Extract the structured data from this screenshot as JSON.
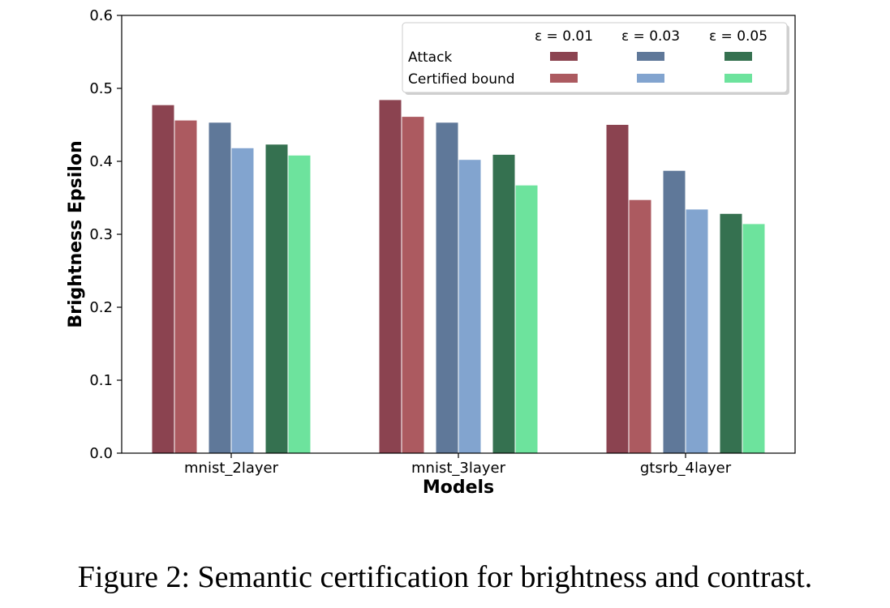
{
  "caption": "Figure 2: Semantic certification for brightness and contrast.",
  "chart_data": {
    "type": "bar",
    "title": "",
    "xlabel": "Models",
    "ylabel": "Brightness Epsilon",
    "ylim": [
      0,
      0.6
    ],
    "yticks": [
      "0.0",
      "0.1",
      "0.2",
      "0.3",
      "0.4",
      "0.5",
      "0.6"
    ],
    "grid": false,
    "categories": [
      "mnist_2layer",
      "mnist_3layer",
      "gtsrb_4layer"
    ],
    "series": [
      {
        "name": "Attack ε = 0.01",
        "color": "#8b4350",
        "values": [
          0.477,
          0.484,
          0.45
        ]
      },
      {
        "name": "Certified bound ε = 0.01",
        "color": "#ac5a60",
        "values": [
          0.456,
          0.461,
          0.347
        ]
      },
      {
        "name": "Attack ε = 0.03",
        "color": "#5f7899",
        "values": [
          0.453,
          0.453,
          0.387
        ]
      },
      {
        "name": "Certified bound ε = 0.03",
        "color": "#82a4cf",
        "values": [
          0.418,
          0.402,
          0.334
        ]
      },
      {
        "name": "Attack ε = 0.05",
        "color": "#357150",
        "values": [
          0.423,
          0.409,
          0.328
        ]
      },
      {
        "name": "Certified bound ε = 0.05",
        "color": "#6de39d",
        "values": [
          0.408,
          0.367,
          0.314
        ]
      }
    ],
    "legend": {
      "placement": "top-right",
      "columns": [
        "ε = 0.01",
        "ε = 0.03",
        "ε = 0.05"
      ],
      "rows": [
        "Attack",
        "Certified bound"
      ]
    }
  }
}
